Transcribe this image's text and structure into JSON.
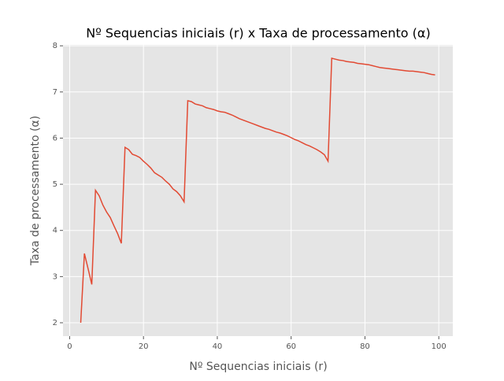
{
  "chart_data": {
    "type": "line",
    "title": "Nº Sequencias iniciais (r) x Taxa de processamento (α)",
    "xlabel": "Nº Sequencias iniciais (r)",
    "ylabel": "Taxa de processamento (α)",
    "x": [
      3,
      4,
      5,
      6,
      7,
      8,
      9,
      10,
      11,
      12,
      13,
      14,
      15,
      16,
      17,
      18,
      19,
      20,
      21,
      22,
      23,
      24,
      25,
      26,
      27,
      28,
      29,
      30,
      31,
      32,
      33,
      34,
      35,
      36,
      37,
      38,
      39,
      40,
      41,
      42,
      43,
      44,
      45,
      46,
      47,
      48,
      49,
      50,
      51,
      52,
      53,
      54,
      55,
      56,
      57,
      58,
      59,
      60,
      61,
      62,
      63,
      64,
      65,
      66,
      67,
      68,
      69,
      70,
      71,
      72,
      73,
      74,
      75,
      76,
      77,
      78,
      79,
      80,
      81,
      82,
      83,
      84,
      85,
      86,
      87,
      88,
      89,
      90,
      91,
      92,
      93,
      94,
      95,
      96,
      97,
      98,
      99
    ],
    "values": [
      2.0,
      3.5,
      3.17,
      2.83,
      4.87,
      4.75,
      4.55,
      4.4,
      4.28,
      4.1,
      3.93,
      3.72,
      5.8,
      5.75,
      5.65,
      5.62,
      5.58,
      5.5,
      5.43,
      5.35,
      5.25,
      5.2,
      5.15,
      5.07,
      5.0,
      4.9,
      4.84,
      4.75,
      4.62,
      6.81,
      6.79,
      6.74,
      6.72,
      6.7,
      6.66,
      6.64,
      6.62,
      6.59,
      6.57,
      6.56,
      6.53,
      6.5,
      6.46,
      6.42,
      6.39,
      6.36,
      6.33,
      6.3,
      6.27,
      6.24,
      6.21,
      6.19,
      6.16,
      6.13,
      6.11,
      6.08,
      6.05,
      6.01,
      5.97,
      5.94,
      5.9,
      5.86,
      5.83,
      5.79,
      5.75,
      5.7,
      5.64,
      5.5,
      7.73,
      7.71,
      7.69,
      7.68,
      7.66,
      7.65,
      7.64,
      7.62,
      7.61,
      7.6,
      7.59,
      7.57,
      7.55,
      7.53,
      7.52,
      7.51,
      7.5,
      7.49,
      7.48,
      7.47,
      7.46,
      7.45,
      7.45,
      7.44,
      7.43,
      7.42,
      7.4,
      7.38,
      7.37
    ],
    "color": "#E24A33",
    "xlim": [
      -1.8,
      103.8
    ],
    "ylim": [
      1.71,
      8.02
    ],
    "xticks": [
      0,
      20,
      40,
      60,
      80,
      100
    ],
    "yticks": [
      2,
      3,
      4,
      5,
      6,
      7,
      8
    ],
    "grid": true
  }
}
